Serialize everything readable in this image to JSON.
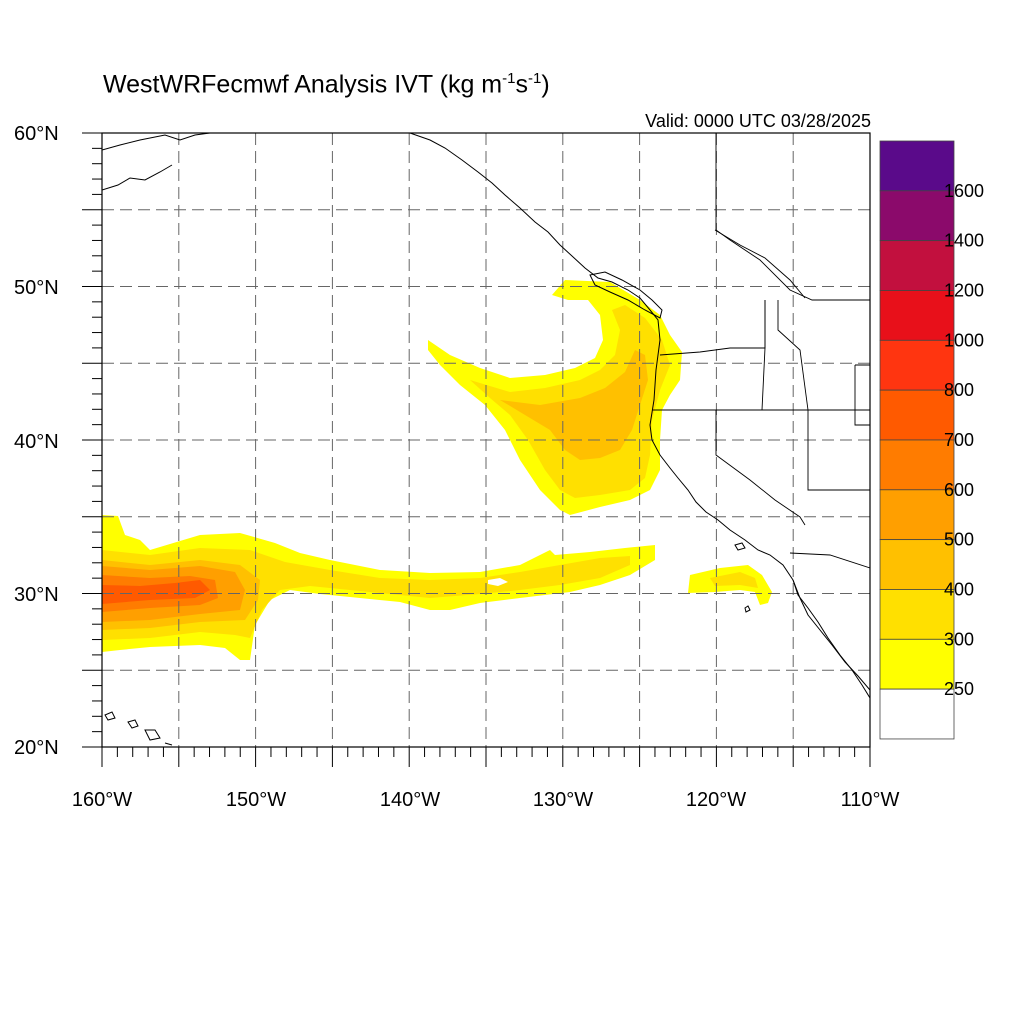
{
  "title": {
    "main": "WestWRFecmwf Analysis IVT (kg m",
    "sup1": "-1",
    "mid": "s",
    "sup2": "-1",
    "end": ")"
  },
  "valid_text": "Valid: 0000 UTC 03/28/2025",
  "axes": {
    "lat_labels": [
      "60°N",
      "50°N",
      "40°N",
      "30°N",
      "20°N"
    ],
    "lon_labels": [
      "160°W",
      "150°W",
      "140°W",
      "130°W",
      "120°W",
      "110°W"
    ],
    "lat_range": [
      20,
      60
    ],
    "lon_range": [
      -160,
      -110
    ],
    "grid_spacing_deg": 5,
    "grid": true
  },
  "colorbar": {
    "labels": [
      "1600",
      "1400",
      "1200",
      "1000",
      "800",
      "700",
      "600",
      "500",
      "400",
      "300",
      "250"
    ],
    "colors": [
      "#5a0a8a",
      "#8b0a6b",
      "#c2103e",
      "#e8101a",
      "#ff3510",
      "#ff5a00",
      "#ff7c00",
      "#ff9f00",
      "#ffc000",
      "#ffe000",
      "#ffff00",
      "#ffffff"
    ],
    "levels": [
      250,
      300,
      400,
      500,
      600,
      700,
      800,
      1000,
      1200,
      1400,
      1600
    ]
  },
  "colors": {
    "coast": "#000000",
    "grid": "#666666",
    "ivt_250": "#ffff00",
    "ivt_300": "#ffe000",
    "ivt_400": "#ffc000",
    "ivt_500": "#ff9f00",
    "ivt_600": "#ff7c00",
    "ivt_700": "#ff5a00"
  }
}
